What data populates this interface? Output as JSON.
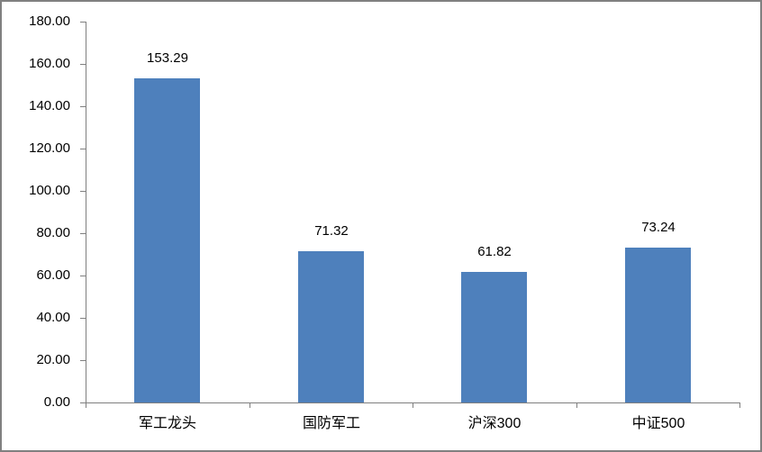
{
  "chart_data": {
    "type": "bar",
    "title": "",
    "xlabel": "",
    "ylabel": "",
    "categories": [
      "军工龙头",
      "国防军工",
      "沪深300",
      "中证500"
    ],
    "values": [
      153.29,
      71.32,
      61.82,
      73.24
    ],
    "data_labels": [
      "153.29",
      "71.32",
      "61.82",
      "73.24"
    ],
    "ylim": [
      0,
      180
    ],
    "ytick_step": 20,
    "ytick_labels": [
      "0.00",
      "20.00",
      "40.00",
      "60.00",
      "80.00",
      "100.00",
      "120.00",
      "140.00",
      "160.00",
      "180.00"
    ],
    "grid": false,
    "legend_position": "none",
    "colors": {
      "bar_fill": "#4e80bc",
      "axis_line": "#7f7f7f",
      "chart_border": "#808080",
      "background": "#ffffff",
      "label_text": "#000000"
    }
  }
}
